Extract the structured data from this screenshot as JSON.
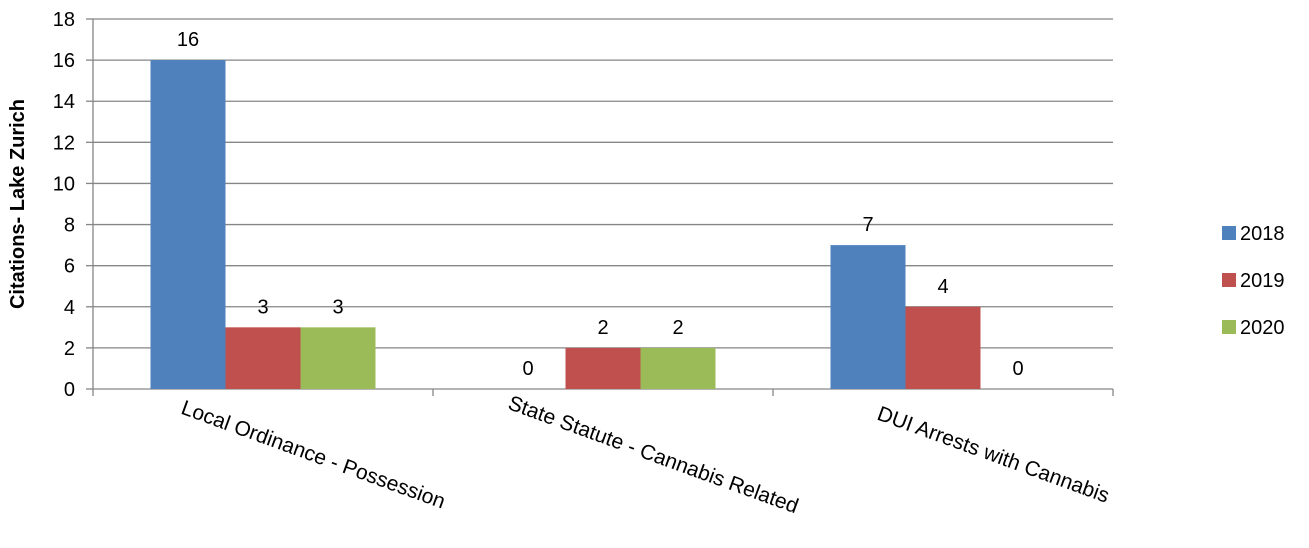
{
  "chart_data": {
    "type": "bar",
    "title": "",
    "ylabel": "Citations- Lake Zurich",
    "xlabel": "",
    "ylim": [
      0,
      18
    ],
    "ytick_step": 2,
    "ytick_labels": [
      "0",
      "2",
      "4",
      "6",
      "8",
      "10",
      "12",
      "14",
      "16",
      "18"
    ],
    "grid": true,
    "legend_position": "right",
    "categories": [
      "Local Ordinance - Possession",
      "State Statute - Cannabis Related",
      "DUI Arrests with Cannabis"
    ],
    "series": [
      {
        "name": "2018",
        "color": "#4F81BD",
        "values": [
          16,
          0,
          7
        ]
      },
      {
        "name": "2019",
        "color": "#C0504D",
        "values": [
          3,
          2,
          4
        ]
      },
      {
        "name": "2020",
        "color": "#9BBB59",
        "values": [
          3,
          2,
          0
        ]
      }
    ]
  }
}
